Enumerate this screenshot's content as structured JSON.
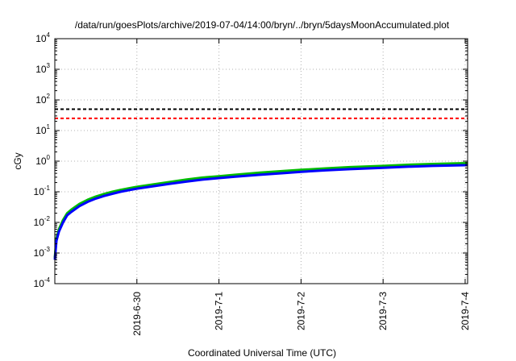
{
  "chart_data": {
    "type": "line",
    "title": "/data/run/goesPlots/archive/2019-07-04/14:00/bryn/../bryn/5daysMoonAccumulated.plot",
    "xlabel": "Coordinated Universal Time (UTC)",
    "ylabel": "cGy",
    "y_scale": "log",
    "ylim": [
      0.0001,
      10000
    ],
    "xlim": [
      0,
      5.03
    ],
    "x_ticks": [
      {
        "value": 1,
        "label": "2019-6-30"
      },
      {
        "value": 2,
        "label": "2019-7-1"
      },
      {
        "value": 3,
        "label": "2019-7-2"
      },
      {
        "value": 4,
        "label": "2019-7-3"
      },
      {
        "value": 5,
        "label": "2019-7-4"
      }
    ],
    "y_ticks": [
      {
        "value": 0.0001,
        "base": "10",
        "exp": "-4"
      },
      {
        "value": 0.001,
        "base": "10",
        "exp": "-3"
      },
      {
        "value": 0.01,
        "base": "10",
        "exp": "-2"
      },
      {
        "value": 0.1,
        "base": "10",
        "exp": "-1"
      },
      {
        "value": 1,
        "base": "10",
        "exp": "0"
      },
      {
        "value": 10,
        "base": "10",
        "exp": "1"
      },
      {
        "value": 100,
        "base": "10",
        "exp": "2"
      },
      {
        "value": 1000,
        "base": "10",
        "exp": "3"
      },
      {
        "value": 10000,
        "base": "10",
        "exp": "4"
      }
    ],
    "grid": true,
    "reference_lines": [
      {
        "y": 50,
        "color": "#000000",
        "style": "dashed"
      },
      {
        "y": 25,
        "color": "#ff0000",
        "style": "dashed"
      }
    ],
    "series": [
      {
        "color": "#00bb00",
        "x": [
          0,
          0.02,
          0.05,
          0.1,
          0.15,
          0.2,
          0.3,
          0.4,
          0.5,
          0.6,
          0.7,
          0.8,
          0.9,
          1.0,
          1.2,
          1.4,
          1.6,
          1.8,
          2.0,
          2.2,
          2.5,
          2.8,
          3.0,
          3.3,
          3.6,
          4.0,
          4.3,
          4.6,
          5.0,
          5.03
        ],
        "y": [
          0.0007,
          0.003,
          0.006,
          0.012,
          0.02,
          0.026,
          0.04,
          0.055,
          0.07,
          0.085,
          0.1,
          0.115,
          0.13,
          0.145,
          0.175,
          0.21,
          0.25,
          0.29,
          0.32,
          0.36,
          0.42,
          0.48,
          0.52,
          0.58,
          0.64,
          0.7,
          0.76,
          0.81,
          0.86,
          0.87
        ]
      },
      {
        "color": "#0000ff",
        "x": [
          0,
          0.02,
          0.05,
          0.1,
          0.15,
          0.2,
          0.3,
          0.4,
          0.5,
          0.6,
          0.7,
          0.8,
          0.9,
          1.0,
          1.2,
          1.4,
          1.6,
          1.8,
          2.0,
          2.2,
          2.5,
          2.8,
          3.0,
          3.3,
          3.6,
          4.0,
          4.3,
          4.6,
          5.0,
          5.03
        ],
        "y": [
          0.0006,
          0.0025,
          0.005,
          0.01,
          0.017,
          0.022,
          0.034,
          0.047,
          0.06,
          0.073,
          0.086,
          0.1,
          0.113,
          0.127,
          0.152,
          0.182,
          0.215,
          0.25,
          0.28,
          0.31,
          0.36,
          0.41,
          0.45,
          0.5,
          0.55,
          0.61,
          0.66,
          0.7,
          0.74,
          0.75
        ]
      }
    ]
  }
}
